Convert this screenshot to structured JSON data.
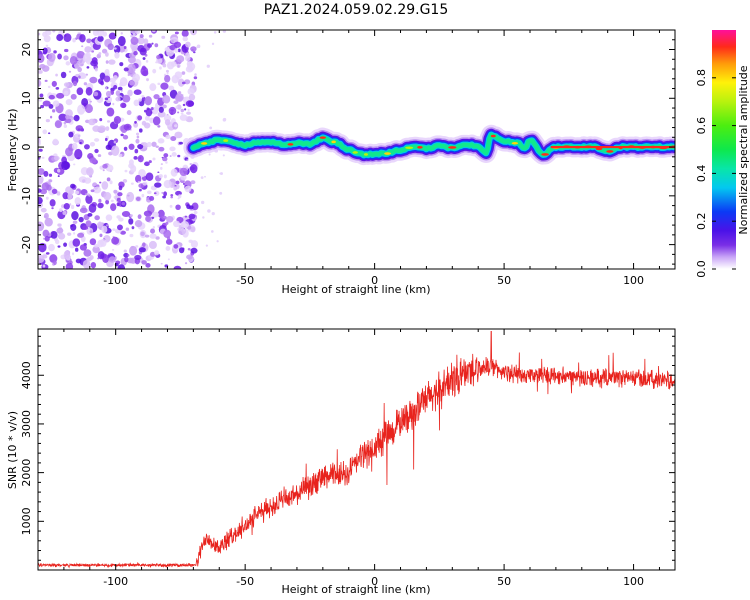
{
  "title": "PAZ1.2024.059.02.29.G15",
  "chart_data": [
    {
      "type": "heatmap",
      "name": "spectrogram",
      "xlabel": "Height of straight line (km)",
      "ylabel": "Frequency (Hz)",
      "xlim": [
        -130,
        116
      ],
      "ylim": [
        -25,
        24
      ],
      "xticks": [
        -100,
        -50,
        0,
        50,
        100
      ],
      "yticks": [
        -20,
        -10,
        0,
        10,
        20
      ],
      "noise_region_x": [
        -130,
        -69
      ],
      "ridge_path": [
        [
          -70,
          0
        ],
        [
          -65,
          0.8
        ],
        [
          -60,
          1.5
        ],
        [
          -55,
          1
        ],
        [
          -50,
          0.4
        ],
        [
          -45,
          1
        ],
        [
          -40,
          1
        ],
        [
          -35,
          0.5
        ],
        [
          -30,
          0.8
        ],
        [
          -25,
          0.6
        ],
        [
          -20,
          1.8
        ],
        [
          -15,
          0.9
        ],
        [
          -10,
          -0.5
        ],
        [
          -5,
          -1.5
        ],
        [
          0,
          -1.5
        ],
        [
          5,
          -1.2
        ],
        [
          10,
          -0.6
        ],
        [
          15,
          0
        ],
        [
          20,
          -0.3
        ],
        [
          25,
          0.3
        ],
        [
          30,
          -0.2
        ],
        [
          35,
          0.5
        ],
        [
          40,
          0.2
        ],
        [
          43,
          -1.2
        ],
        [
          45,
          2.5
        ],
        [
          50,
          1.2
        ],
        [
          55,
          0.9
        ],
        [
          58,
          -0.2
        ],
        [
          60,
          1.4
        ],
        [
          65,
          -1.5
        ],
        [
          70,
          0
        ],
        [
          75,
          0
        ],
        [
          80,
          0
        ],
        [
          85,
          0
        ],
        [
          90,
          -0.8
        ],
        [
          95,
          0
        ],
        [
          100,
          0
        ],
        [
          105,
          0
        ],
        [
          110,
          0
        ],
        [
          116,
          0
        ]
      ],
      "colorbar": {
        "label": "Normalized spectral amplitude",
        "range": [
          0,
          1
        ],
        "ticks": [
          "0.0",
          "0.2",
          "0.4",
          "0.6",
          "0.8"
        ],
        "tick_values": [
          0,
          0.2,
          0.4,
          0.6,
          0.8
        ],
        "colormap": "gist_ncar_like"
      }
    },
    {
      "type": "line",
      "name": "snr",
      "xlabel": "Height of straight line (km)",
      "ylabel": "SNR (10 * v/v)",
      "xlim": [
        -130,
        116
      ],
      "ylim": [
        0,
        4950
      ],
      "xticks": [
        -100,
        -50,
        0,
        50,
        100
      ],
      "yticks": [
        1000,
        2000,
        3000,
        4000
      ],
      "color": "#e8231d",
      "trend": {
        "x": [
          -130,
          -80,
          -69,
          -65,
          -60,
          -55,
          -50,
          -45,
          -40,
          -35,
          -30,
          -25,
          -20,
          -15,
          -10,
          -5,
          0,
          5,
          10,
          15,
          20,
          25,
          30,
          35,
          40,
          45,
          50,
          60,
          70,
          80,
          90,
          100,
          110,
          116
        ],
        "y": [
          100,
          100,
          100,
          700,
          450,
          700,
          900,
          1150,
          1300,
          1450,
          1550,
          1700,
          1900,
          1950,
          2000,
          2350,
          2500,
          2750,
          3050,
          3250,
          3500,
          3700,
          3900,
          4050,
          4150,
          4200,
          4050,
          4000,
          4000,
          3950,
          3950,
          3950,
          3900,
          3900
        ]
      },
      "spike_max_x": 45,
      "spike_max_y": 4900
    }
  ]
}
